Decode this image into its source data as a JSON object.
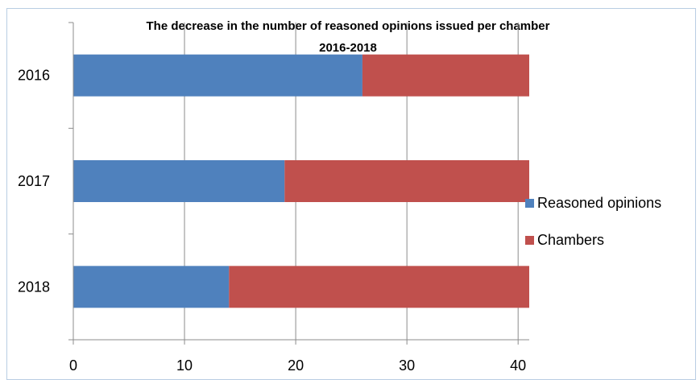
{
  "chart_data": {
    "type": "bar",
    "orientation": "horizontal",
    "stacked": true,
    "title": "The decrease in the number of reasoned opinions issued per chamber",
    "subtitle": "2016-2018",
    "categories": [
      "2016",
      "2017",
      "2018"
    ],
    "series": [
      {
        "name": "Reasoned opinions",
        "color": "#4f81bd",
        "values": [
          26,
          19,
          14
        ]
      },
      {
        "name": "Chambers",
        "color": "#c0504d",
        "values": [
          15,
          22,
          27
        ]
      }
    ],
    "xlim": [
      0,
      41
    ],
    "xticks": [
      0,
      10,
      20,
      30,
      40
    ],
    "xlabel": "",
    "ylabel": "",
    "grid": true,
    "legend_position": "right"
  }
}
